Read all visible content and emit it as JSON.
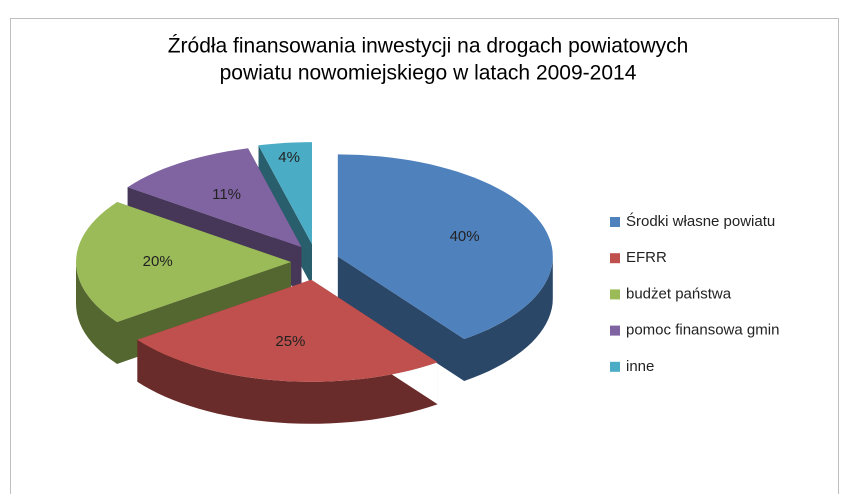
{
  "chart_data": {
    "type": "pie3d",
    "title": [
      "Źródła finansowania inwestycji na drogach powiatowych",
      "powiatu nowomiejskiego w latach 2009-2014"
    ],
    "categories": [
      "Środki własne powiatu",
      "EFRR",
      "budżet państwa",
      "pomoc finansowa gmin",
      "inne"
    ],
    "values": [
      40,
      25,
      20,
      11,
      4
    ],
    "value_labels": [
      "40%",
      "25%",
      "20%",
      "11%",
      "4%"
    ],
    "colors": [
      "#4f81bd",
      "#c0504d",
      "#9bbb59",
      "#8064a2",
      "#4bacc6"
    ],
    "legend": "right"
  }
}
